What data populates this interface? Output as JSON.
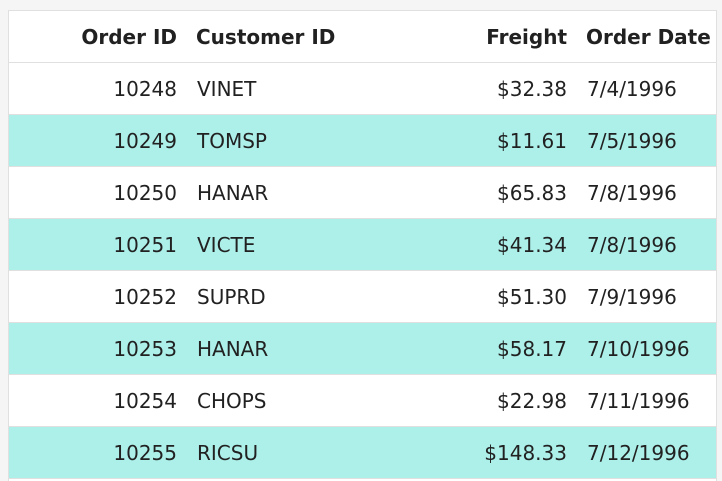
{
  "grid": {
    "columns": [
      "Order ID",
      "Customer ID",
      "Freight",
      "Order Date"
    ],
    "rows": [
      {
        "order_id": "10248",
        "customer_id": "VINET",
        "freight": "$32.38",
        "order_date": "7/4/1996"
      },
      {
        "order_id": "10249",
        "customer_id": "TOMSP",
        "freight": "$11.61",
        "order_date": "7/5/1996"
      },
      {
        "order_id": "10250",
        "customer_id": "HANAR",
        "freight": "$65.83",
        "order_date": "7/8/1996"
      },
      {
        "order_id": "10251",
        "customer_id": "VICTE",
        "freight": "$41.34",
        "order_date": "7/8/1996"
      },
      {
        "order_id": "10252",
        "customer_id": "SUPRD",
        "freight": "$51.30",
        "order_date": "7/9/1996"
      },
      {
        "order_id": "10253",
        "customer_id": "HANAR",
        "freight": "$58.17",
        "order_date": "7/10/1996"
      },
      {
        "order_id": "10254",
        "customer_id": "CHOPS",
        "freight": "$22.98",
        "order_date": "7/11/1996"
      },
      {
        "order_id": "10255",
        "customer_id": "RICSU",
        "freight": "$148.33",
        "order_date": "7/12/1996"
      }
    ]
  },
  "colors": {
    "alt_row": "#adf0ea",
    "row": "#ffffff",
    "border": "#e0e0e0"
  }
}
